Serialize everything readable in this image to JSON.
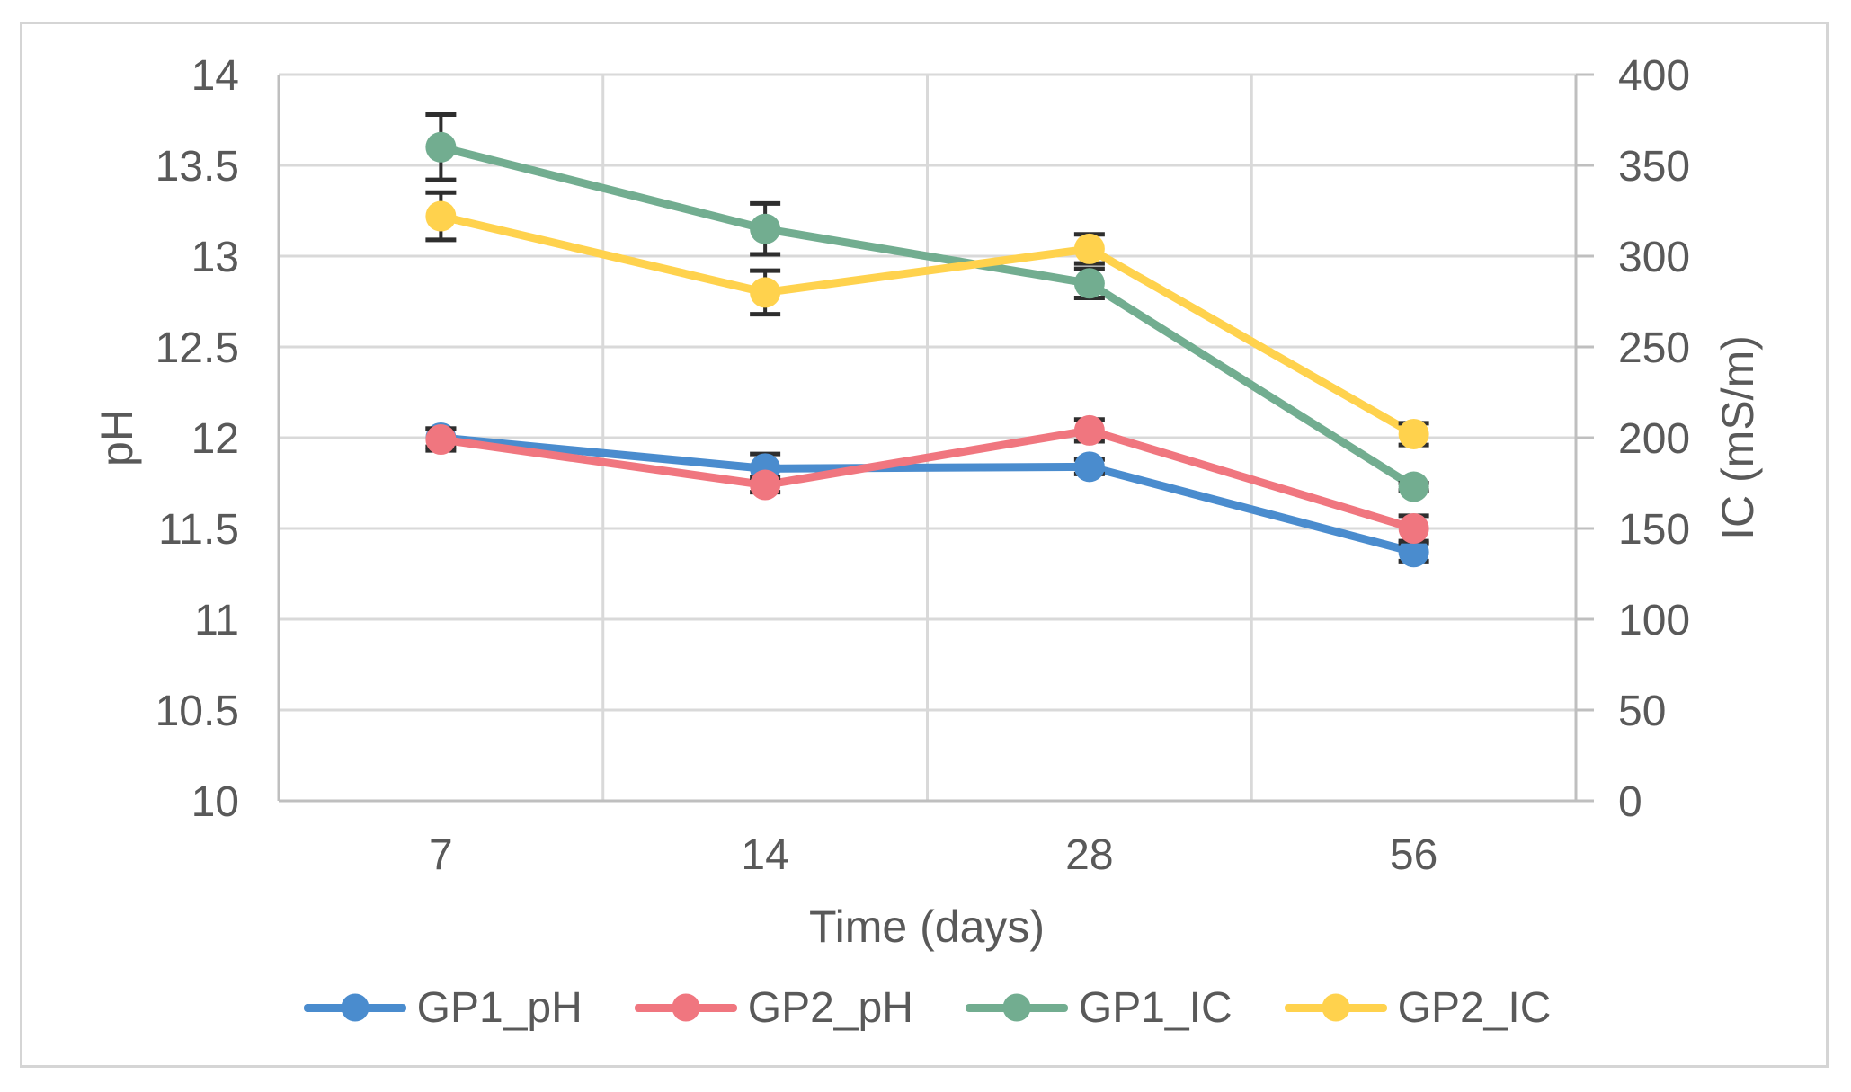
{
  "chart_data": {
    "type": "line",
    "x_categories": [
      "7",
      "14",
      "28",
      "56"
    ],
    "xlabel": "Time (days)",
    "axes": {
      "left": {
        "label": "pH",
        "min": 10,
        "max": 14,
        "step": 0.5,
        "ticks": [
          14,
          13.5,
          13,
          12.5,
          12,
          11.5,
          11,
          10.5,
          10
        ]
      },
      "right": {
        "label": "IC (mS/m)",
        "min": 0,
        "max": 400,
        "step": 50,
        "ticks": [
          400,
          350,
          300,
          250,
          200,
          150,
          100,
          50,
          0
        ]
      }
    },
    "grid": true,
    "legend_position": "bottom",
    "series": [
      {
        "name": "GP1_pH",
        "axis": "left",
        "color": "#4A8CCE",
        "values": [
          12.0,
          11.83,
          11.84,
          11.37
        ],
        "errors": [
          0.05,
          0.08,
          0.04,
          0.05
        ]
      },
      {
        "name": "GP2_pH",
        "axis": "left",
        "color": "#F0767F",
        "values": [
          11.99,
          11.74,
          12.04,
          11.5
        ],
        "errors": [
          0.06,
          0.04,
          0.06,
          0.07
        ]
      },
      {
        "name": "GP1_IC",
        "axis": "right",
        "color": "#72AD90",
        "values": [
          360,
          315,
          285,
          173
        ],
        "errors": [
          18,
          14,
          8,
          2
        ]
      },
      {
        "name": "GP2_IC",
        "axis": "right",
        "color": "#FFD24D",
        "values": [
          322,
          280,
          304,
          202
        ],
        "errors": [
          13,
          12,
          8,
          6
        ]
      }
    ]
  },
  "style": {
    "text_color": "#595959",
    "gridline_color": "#D9D9D9",
    "axis_line_color": "#BFBFBF",
    "error_bar_color": "#2E2E2E",
    "frame_border_color": "#D5D5D5",
    "background": "#FFFFFF"
  }
}
